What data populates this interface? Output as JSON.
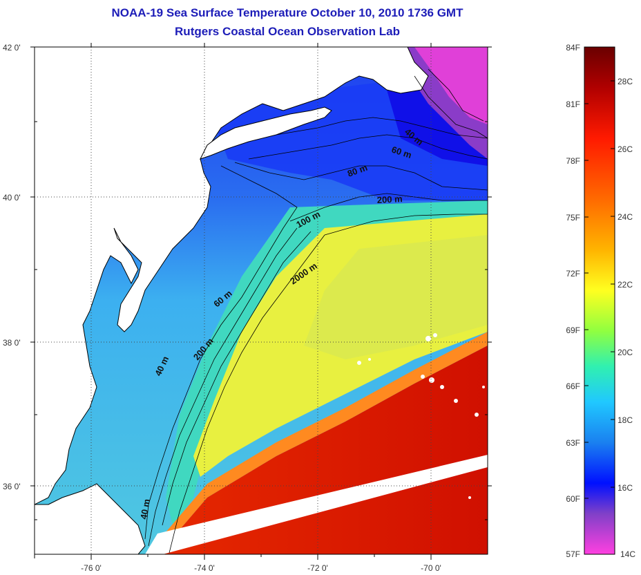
{
  "title": "NOAA-19 Sea Surface Temperature October 10, 2010 1736 GMT",
  "subtitle": "Rutgers Coastal Ocean Observation Lab",
  "lat_labels": [
    "42 0'",
    "40 0'",
    "38 0'",
    "36 0'"
  ],
  "lon_labels": [
    "-76 0'",
    "-74 0'",
    "-72 0'",
    "-70 0'"
  ],
  "colorbar": {
    "fahrenheit": [
      "84F",
      "81F",
      "78F",
      "75F",
      "72F",
      "69F",
      "66F",
      "63F",
      "60F",
      "57F"
    ],
    "celsius": [
      "28C",
      "26C",
      "24C",
      "22C",
      "20C",
      "18C",
      "16C",
      "14C"
    ],
    "stops": [
      "#6a0000",
      "#c00000",
      "#ff2000",
      "#ff6a00",
      "#ffb000",
      "#ffff20",
      "#80ff40",
      "#30f0c0",
      "#20c8ff",
      "#1878f0",
      "#0000ff",
      "#8040c8",
      "#ff40e0"
    ]
  },
  "isobath_labels": [
    "40 m",
    "60 m",
    "80 m",
    "200 m",
    "100 m",
    "2000 m",
    "60 m",
    "200 m",
    "40 m",
    "40 m"
  ],
  "colors": {
    "title": "#1d1db8",
    "land": "#ffffff",
    "frame": "#000000"
  }
}
